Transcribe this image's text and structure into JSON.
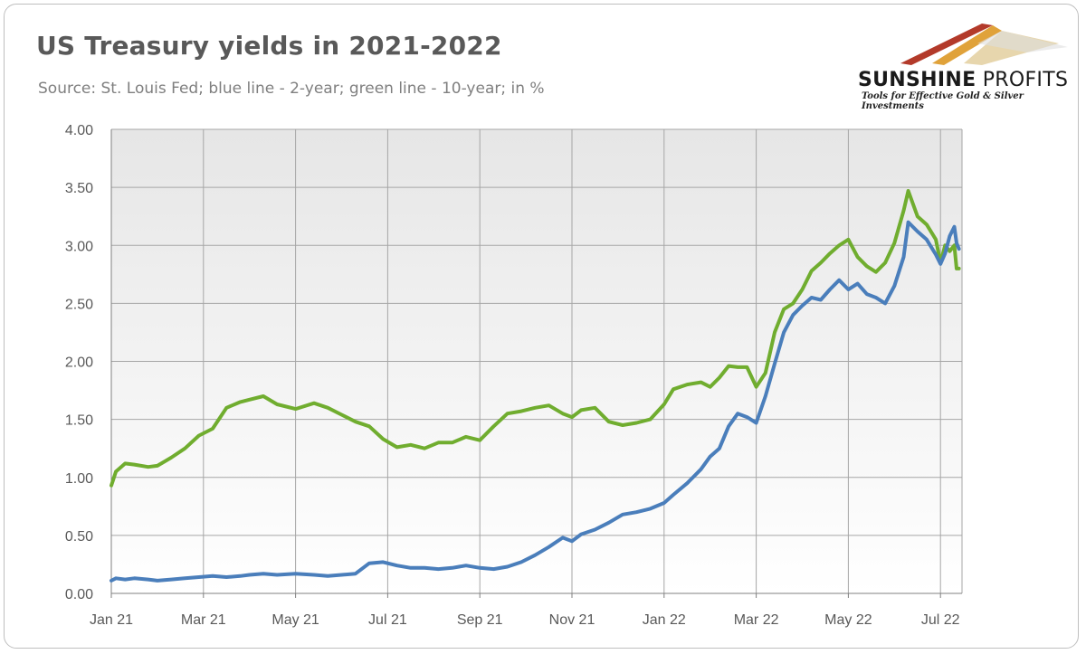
{
  "header": {
    "title": "US Treasury yields in 2021-2022",
    "subtitle": "Source: St. Louis Fed; blue line - 2-year; green line - 10-year; in %"
  },
  "logo": {
    "name_bold": "SUNSHINE",
    "name_light": " PROFITS",
    "tagline": "Tools for Effective Gold & Silver Investments"
  },
  "chart_data": {
    "type": "line",
    "title": "US Treasury yields in 2021-2022",
    "xlabel": "",
    "ylabel": "",
    "ylim": [
      0,
      4
    ],
    "yticks": [
      "0.00",
      "0.50",
      "1.00",
      "1.50",
      "2.00",
      "2.50",
      "3.00",
      "3.50",
      "4.00"
    ],
    "xticks": [
      "Jan 21",
      "Mar 21",
      "May 21",
      "Jul 21",
      "Sep 21",
      "Nov 21",
      "Jan 22",
      "Mar 22",
      "May 22",
      "Jul 22"
    ],
    "x_range_months": [
      0,
      18.4
    ],
    "grid": true,
    "legend": "none",
    "series": [
      {
        "color": "#4a7ebb",
        "points": [
          [
            0.0,
            0.11
          ],
          [
            0.1,
            0.13
          ],
          [
            0.3,
            0.12
          ],
          [
            0.5,
            0.13
          ],
          [
            0.8,
            0.12
          ],
          [
            1.0,
            0.11
          ],
          [
            1.3,
            0.12
          ],
          [
            1.6,
            0.13
          ],
          [
            1.9,
            0.14
          ],
          [
            2.2,
            0.15
          ],
          [
            2.5,
            0.14
          ],
          [
            2.8,
            0.15
          ],
          [
            3.0,
            0.16
          ],
          [
            3.3,
            0.17
          ],
          [
            3.6,
            0.16
          ],
          [
            4.0,
            0.17
          ],
          [
            4.4,
            0.16
          ],
          [
            4.7,
            0.15
          ],
          [
            5.0,
            0.16
          ],
          [
            5.3,
            0.17
          ],
          [
            5.6,
            0.26
          ],
          [
            5.9,
            0.27
          ],
          [
            6.2,
            0.24
          ],
          [
            6.5,
            0.22
          ],
          [
            6.8,
            0.22
          ],
          [
            7.1,
            0.21
          ],
          [
            7.4,
            0.22
          ],
          [
            7.7,
            0.24
          ],
          [
            8.0,
            0.22
          ],
          [
            8.3,
            0.21
          ],
          [
            8.6,
            0.23
          ],
          [
            8.9,
            0.27
          ],
          [
            9.2,
            0.33
          ],
          [
            9.5,
            0.4
          ],
          [
            9.8,
            0.48
          ],
          [
            10.0,
            0.45
          ],
          [
            10.2,
            0.51
          ],
          [
            10.5,
            0.55
          ],
          [
            10.8,
            0.61
          ],
          [
            11.1,
            0.68
          ],
          [
            11.4,
            0.7
          ],
          [
            11.7,
            0.73
          ],
          [
            12.0,
            0.78
          ],
          [
            12.2,
            0.85
          ],
          [
            12.5,
            0.95
          ],
          [
            12.8,
            1.07
          ],
          [
            13.0,
            1.18
          ],
          [
            13.2,
            1.25
          ],
          [
            13.4,
            1.44
          ],
          [
            13.6,
            1.55
          ],
          [
            13.8,
            1.52
          ],
          [
            14.0,
            1.47
          ],
          [
            14.2,
            1.7
          ],
          [
            14.4,
            1.98
          ],
          [
            14.6,
            2.25
          ],
          [
            14.8,
            2.4
          ],
          [
            15.0,
            2.48
          ],
          [
            15.2,
            2.55
          ],
          [
            15.4,
            2.53
          ],
          [
            15.6,
            2.62
          ],
          [
            15.8,
            2.7
          ],
          [
            16.0,
            2.62
          ],
          [
            16.2,
            2.67
          ],
          [
            16.4,
            2.58
          ],
          [
            16.6,
            2.55
          ],
          [
            16.8,
            2.5
          ],
          [
            17.0,
            2.65
          ],
          [
            17.2,
            2.9
          ],
          [
            17.3,
            3.2
          ],
          [
            17.5,
            3.12
          ],
          [
            17.7,
            3.05
          ],
          [
            17.9,
            2.92
          ],
          [
            18.0,
            2.84
          ],
          [
            18.1,
            2.93
          ],
          [
            18.2,
            3.08
          ],
          [
            18.3,
            3.16
          ],
          [
            18.35,
            3.02
          ],
          [
            18.4,
            2.97
          ]
        ]
      },
      {
        "color": "#70ad2f",
        "points": [
          [
            0.0,
            0.93
          ],
          [
            0.1,
            1.05
          ],
          [
            0.3,
            1.12
          ],
          [
            0.5,
            1.11
          ],
          [
            0.8,
            1.09
          ],
          [
            1.0,
            1.1
          ],
          [
            1.3,
            1.17
          ],
          [
            1.6,
            1.25
          ],
          [
            1.9,
            1.36
          ],
          [
            2.2,
            1.42
          ],
          [
            2.5,
            1.6
          ],
          [
            2.8,
            1.65
          ],
          [
            3.0,
            1.67
          ],
          [
            3.3,
            1.7
          ],
          [
            3.6,
            1.63
          ],
          [
            4.0,
            1.59
          ],
          [
            4.4,
            1.64
          ],
          [
            4.7,
            1.6
          ],
          [
            5.0,
            1.54
          ],
          [
            5.3,
            1.48
          ],
          [
            5.6,
            1.44
          ],
          [
            5.9,
            1.33
          ],
          [
            6.2,
            1.26
          ],
          [
            6.5,
            1.28
          ],
          [
            6.8,
            1.25
          ],
          [
            7.1,
            1.3
          ],
          [
            7.4,
            1.3
          ],
          [
            7.7,
            1.35
          ],
          [
            8.0,
            1.32
          ],
          [
            8.3,
            1.44
          ],
          [
            8.6,
            1.55
          ],
          [
            8.9,
            1.57
          ],
          [
            9.2,
            1.6
          ],
          [
            9.5,
            1.62
          ],
          [
            9.8,
            1.55
          ],
          [
            10.0,
            1.52
          ],
          [
            10.2,
            1.58
          ],
          [
            10.5,
            1.6
          ],
          [
            10.8,
            1.48
          ],
          [
            11.1,
            1.45
          ],
          [
            11.4,
            1.47
          ],
          [
            11.7,
            1.5
          ],
          [
            12.0,
            1.63
          ],
          [
            12.2,
            1.76
          ],
          [
            12.5,
            1.8
          ],
          [
            12.8,
            1.82
          ],
          [
            13.0,
            1.78
          ],
          [
            13.2,
            1.86
          ],
          [
            13.4,
            1.96
          ],
          [
            13.6,
            1.95
          ],
          [
            13.8,
            1.95
          ],
          [
            14.0,
            1.78
          ],
          [
            14.2,
            1.9
          ],
          [
            14.4,
            2.25
          ],
          [
            14.6,
            2.45
          ],
          [
            14.8,
            2.5
          ],
          [
            15.0,
            2.62
          ],
          [
            15.2,
            2.78
          ],
          [
            15.4,
            2.85
          ],
          [
            15.6,
            2.93
          ],
          [
            15.8,
            3.0
          ],
          [
            16.0,
            3.05
          ],
          [
            16.2,
            2.9
          ],
          [
            16.4,
            2.82
          ],
          [
            16.6,
            2.77
          ],
          [
            16.8,
            2.85
          ],
          [
            17.0,
            3.02
          ],
          [
            17.2,
            3.3
          ],
          [
            17.3,
            3.47
          ],
          [
            17.5,
            3.25
          ],
          [
            17.7,
            3.18
          ],
          [
            17.9,
            3.05
          ],
          [
            18.0,
            2.85
          ],
          [
            18.1,
            3.0
          ],
          [
            18.2,
            2.95
          ],
          [
            18.3,
            3.0
          ],
          [
            18.35,
            2.8
          ],
          [
            18.4,
            2.8
          ]
        ]
      }
    ]
  }
}
